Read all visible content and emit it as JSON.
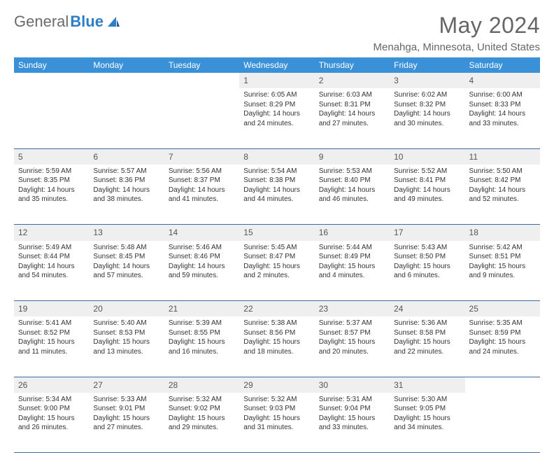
{
  "brand": {
    "part1": "General",
    "part2": "Blue"
  },
  "title": "May 2024",
  "location": "Menahga, Minnesota, United States",
  "header_bg": "#3a91d8",
  "daynum_bg": "#efefef",
  "border_color": "#3a6ca0",
  "days_of_week": [
    "Sunday",
    "Monday",
    "Tuesday",
    "Wednesday",
    "Thursday",
    "Friday",
    "Saturday"
  ],
  "weeks": [
    [
      null,
      null,
      null,
      {
        "n": "1",
        "sunrise": "Sunrise: 6:05 AM",
        "sunset": "Sunset: 8:29 PM",
        "day1": "Daylight: 14 hours",
        "day2": "and 24 minutes."
      },
      {
        "n": "2",
        "sunrise": "Sunrise: 6:03 AM",
        "sunset": "Sunset: 8:31 PM",
        "day1": "Daylight: 14 hours",
        "day2": "and 27 minutes."
      },
      {
        "n": "3",
        "sunrise": "Sunrise: 6:02 AM",
        "sunset": "Sunset: 8:32 PM",
        "day1": "Daylight: 14 hours",
        "day2": "and 30 minutes."
      },
      {
        "n": "4",
        "sunrise": "Sunrise: 6:00 AM",
        "sunset": "Sunset: 8:33 PM",
        "day1": "Daylight: 14 hours",
        "day2": "and 33 minutes."
      }
    ],
    [
      {
        "n": "5",
        "sunrise": "Sunrise: 5:59 AM",
        "sunset": "Sunset: 8:35 PM",
        "day1": "Daylight: 14 hours",
        "day2": "and 35 minutes."
      },
      {
        "n": "6",
        "sunrise": "Sunrise: 5:57 AM",
        "sunset": "Sunset: 8:36 PM",
        "day1": "Daylight: 14 hours",
        "day2": "and 38 minutes."
      },
      {
        "n": "7",
        "sunrise": "Sunrise: 5:56 AM",
        "sunset": "Sunset: 8:37 PM",
        "day1": "Daylight: 14 hours",
        "day2": "and 41 minutes."
      },
      {
        "n": "8",
        "sunrise": "Sunrise: 5:54 AM",
        "sunset": "Sunset: 8:38 PM",
        "day1": "Daylight: 14 hours",
        "day2": "and 44 minutes."
      },
      {
        "n": "9",
        "sunrise": "Sunrise: 5:53 AM",
        "sunset": "Sunset: 8:40 PM",
        "day1": "Daylight: 14 hours",
        "day2": "and 46 minutes."
      },
      {
        "n": "10",
        "sunrise": "Sunrise: 5:52 AM",
        "sunset": "Sunset: 8:41 PM",
        "day1": "Daylight: 14 hours",
        "day2": "and 49 minutes."
      },
      {
        "n": "11",
        "sunrise": "Sunrise: 5:50 AM",
        "sunset": "Sunset: 8:42 PM",
        "day1": "Daylight: 14 hours",
        "day2": "and 52 minutes."
      }
    ],
    [
      {
        "n": "12",
        "sunrise": "Sunrise: 5:49 AM",
        "sunset": "Sunset: 8:44 PM",
        "day1": "Daylight: 14 hours",
        "day2": "and 54 minutes."
      },
      {
        "n": "13",
        "sunrise": "Sunrise: 5:48 AM",
        "sunset": "Sunset: 8:45 PM",
        "day1": "Daylight: 14 hours",
        "day2": "and 57 minutes."
      },
      {
        "n": "14",
        "sunrise": "Sunrise: 5:46 AM",
        "sunset": "Sunset: 8:46 PM",
        "day1": "Daylight: 14 hours",
        "day2": "and 59 minutes."
      },
      {
        "n": "15",
        "sunrise": "Sunrise: 5:45 AM",
        "sunset": "Sunset: 8:47 PM",
        "day1": "Daylight: 15 hours",
        "day2": "and 2 minutes."
      },
      {
        "n": "16",
        "sunrise": "Sunrise: 5:44 AM",
        "sunset": "Sunset: 8:49 PM",
        "day1": "Daylight: 15 hours",
        "day2": "and 4 minutes."
      },
      {
        "n": "17",
        "sunrise": "Sunrise: 5:43 AM",
        "sunset": "Sunset: 8:50 PM",
        "day1": "Daylight: 15 hours",
        "day2": "and 6 minutes."
      },
      {
        "n": "18",
        "sunrise": "Sunrise: 5:42 AM",
        "sunset": "Sunset: 8:51 PM",
        "day1": "Daylight: 15 hours",
        "day2": "and 9 minutes."
      }
    ],
    [
      {
        "n": "19",
        "sunrise": "Sunrise: 5:41 AM",
        "sunset": "Sunset: 8:52 PM",
        "day1": "Daylight: 15 hours",
        "day2": "and 11 minutes."
      },
      {
        "n": "20",
        "sunrise": "Sunrise: 5:40 AM",
        "sunset": "Sunset: 8:53 PM",
        "day1": "Daylight: 15 hours",
        "day2": "and 13 minutes."
      },
      {
        "n": "21",
        "sunrise": "Sunrise: 5:39 AM",
        "sunset": "Sunset: 8:55 PM",
        "day1": "Daylight: 15 hours",
        "day2": "and 16 minutes."
      },
      {
        "n": "22",
        "sunrise": "Sunrise: 5:38 AM",
        "sunset": "Sunset: 8:56 PM",
        "day1": "Daylight: 15 hours",
        "day2": "and 18 minutes."
      },
      {
        "n": "23",
        "sunrise": "Sunrise: 5:37 AM",
        "sunset": "Sunset: 8:57 PM",
        "day1": "Daylight: 15 hours",
        "day2": "and 20 minutes."
      },
      {
        "n": "24",
        "sunrise": "Sunrise: 5:36 AM",
        "sunset": "Sunset: 8:58 PM",
        "day1": "Daylight: 15 hours",
        "day2": "and 22 minutes."
      },
      {
        "n": "25",
        "sunrise": "Sunrise: 5:35 AM",
        "sunset": "Sunset: 8:59 PM",
        "day1": "Daylight: 15 hours",
        "day2": "and 24 minutes."
      }
    ],
    [
      {
        "n": "26",
        "sunrise": "Sunrise: 5:34 AM",
        "sunset": "Sunset: 9:00 PM",
        "day1": "Daylight: 15 hours",
        "day2": "and 26 minutes."
      },
      {
        "n": "27",
        "sunrise": "Sunrise: 5:33 AM",
        "sunset": "Sunset: 9:01 PM",
        "day1": "Daylight: 15 hours",
        "day2": "and 27 minutes."
      },
      {
        "n": "28",
        "sunrise": "Sunrise: 5:32 AM",
        "sunset": "Sunset: 9:02 PM",
        "day1": "Daylight: 15 hours",
        "day2": "and 29 minutes."
      },
      {
        "n": "29",
        "sunrise": "Sunrise: 5:32 AM",
        "sunset": "Sunset: 9:03 PM",
        "day1": "Daylight: 15 hours",
        "day2": "and 31 minutes."
      },
      {
        "n": "30",
        "sunrise": "Sunrise: 5:31 AM",
        "sunset": "Sunset: 9:04 PM",
        "day1": "Daylight: 15 hours",
        "day2": "and 33 minutes."
      },
      {
        "n": "31",
        "sunrise": "Sunrise: 5:30 AM",
        "sunset": "Sunset: 9:05 PM",
        "day1": "Daylight: 15 hours",
        "day2": "and 34 minutes."
      },
      null
    ]
  ]
}
